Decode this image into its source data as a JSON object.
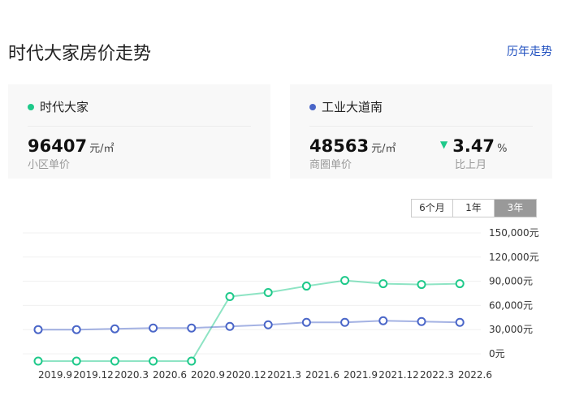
{
  "header": {
    "title": "时代大家房价走势",
    "history_link": "历年走势"
  },
  "cards": [
    {
      "name": "时代大家",
      "dot_color": "#1ec98a",
      "price": "96407",
      "unit": "元/㎡",
      "label": "小区单价"
    },
    {
      "name": "工业大道南",
      "dot_color": "#4a66c8",
      "price": "48563",
      "unit": "元/㎡",
      "label": "商圈单价",
      "change": "3.47",
      "change_unit": "%",
      "change_label": "比上月",
      "change_direction": "down",
      "change_color": "#1ec98a"
    }
  ],
  "range_tabs": [
    {
      "label": "6个月"
    },
    {
      "label": "1年"
    },
    {
      "label": "3年",
      "selected": true
    }
  ],
  "chart_data": {
    "type": "line",
    "x": [
      "2019.9",
      "2019.12",
      "2020.3",
      "2020.6",
      "2020.9",
      "2020.12",
      "2021.3",
      "2021.6",
      "2021.9",
      "2021.12",
      "2022.3",
      "2022.6"
    ],
    "y_ticks": [
      "0元",
      "30,000元",
      "60,000元",
      "90,000元",
      "120,000元",
      "150,000元"
    ],
    "ylim": [
      0,
      150000
    ],
    "grid": true,
    "series": [
      {
        "name": "时代大家",
        "color": "#1ec98a",
        "values": [
          0,
          0,
          0,
          0,
          0,
          71000,
          76000,
          84000,
          91000,
          87000,
          86000,
          87000
        ]
      },
      {
        "name": "工业大道南",
        "color": "#4a66c8",
        "values": [
          30000,
          30000,
          31000,
          32000,
          32000,
          34000,
          36000,
          39000,
          39000,
          41000,
          40000,
          39000
        ]
      }
    ]
  }
}
